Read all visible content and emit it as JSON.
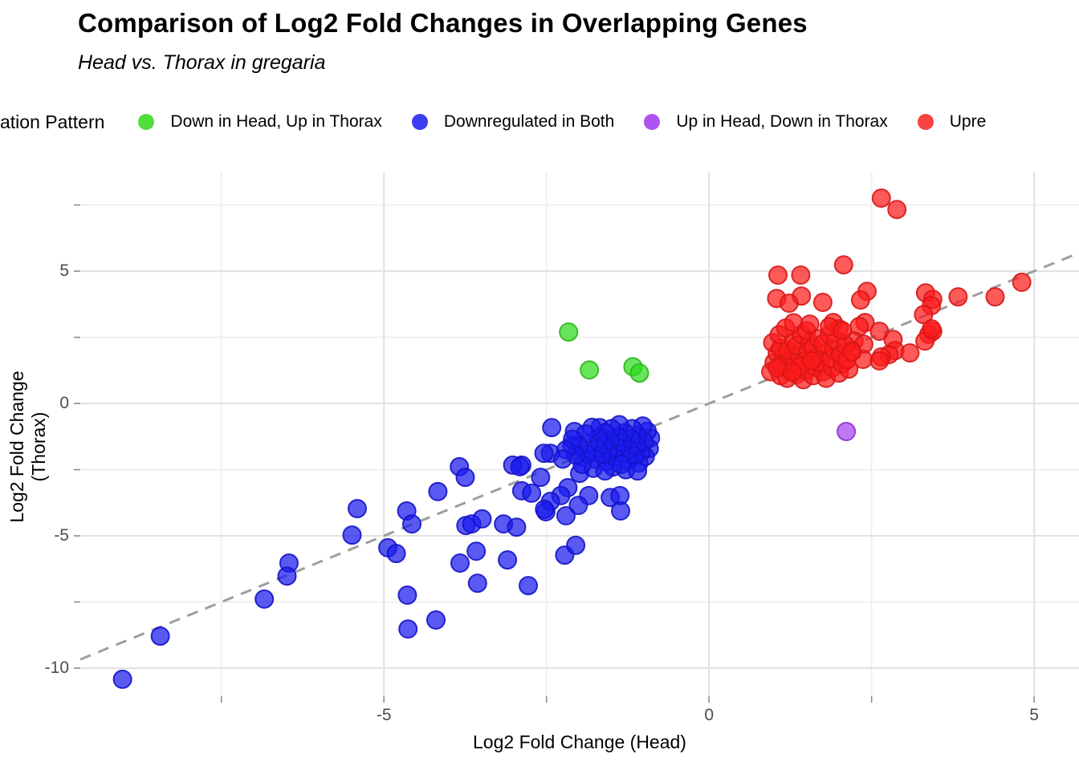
{
  "header": {
    "title": "Comparison of Log2 Fold Changes in Overlapping Genes",
    "subtitle": "Head vs. Thorax in gregaria"
  },
  "legend": {
    "title": "ation Pattern",
    "items": [
      {
        "label": "Down in Head, Up in Thorax",
        "color": "#4FDE3A"
      },
      {
        "label": "Downregulated in Both",
        "color": "#3D3DF0"
      },
      {
        "label": "Up in Head, Down in Thorax",
        "color": "#AE54F0"
      },
      {
        "label": "Upre",
        "color": "#F94343"
      }
    ]
  },
  "chart_data": {
    "type": "scatter",
    "title": "Comparison of Log2 Fold Changes in Overlapping Genes",
    "subtitle": "Head vs. Thorax in gregaria",
    "xlabel": "Log2 Fold Change (Head)",
    "ylabel": "Log2 Fold Change (Thorax)",
    "xlim": [
      -9.67,
      5.69
    ],
    "ylim": [
      -11.06,
      8.73
    ],
    "grid": {
      "x_major": [
        -5,
        0,
        5
      ],
      "x_minor": [
        -7.5,
        -2.5,
        2.5
      ],
      "y_major": [
        -10,
        -5,
        0,
        5
      ],
      "y_minor": [
        -7.5,
        -2.5,
        2.5,
        7.5
      ]
    },
    "x_tick_marks": [
      -7.5,
      -5,
      -2.5,
      0,
      2.5,
      5
    ],
    "y_tick_marks": [
      -10,
      -7.5,
      -5,
      -2.5,
      0,
      2.5,
      5,
      7.5
    ],
    "x_tick_labels": [
      {
        "value": -5,
        "label": "-5"
      },
      {
        "value": 0,
        "label": "0"
      },
      {
        "value": 5,
        "label": "5"
      }
    ],
    "y_tick_labels": [
      {
        "value": -10,
        "label": "-10"
      },
      {
        "value": -5,
        "label": "-5"
      },
      {
        "value": 0,
        "label": "0"
      },
      {
        "value": 5,
        "label": "5"
      }
    ],
    "identity_line": {
      "style": "dashed",
      "color": "#9e9e9e",
      "from": [
        -9.67,
        -9.67
      ],
      "to": [
        5.69,
        5.69
      ]
    },
    "series": [
      {
        "name": "Down in Head, Up in Thorax",
        "color": "#2FD91F",
        "stroke": "#2AB81A",
        "points": [
          [
            -2.16,
            2.7
          ],
          [
            -1.84,
            1.27
          ],
          [
            -1.17,
            1.39
          ],
          [
            -1.07,
            1.15
          ]
        ]
      },
      {
        "name": "Downregulated in Both",
        "color": "#1B1BEF",
        "stroke": "#1414C8",
        "points": [
          [
            -2.42,
            -0.91
          ],
          [
            -2.07,
            -1.06
          ],
          [
            -1.68,
            -0.91
          ],
          [
            -2.44,
            -1.88
          ],
          [
            -2.11,
            -1.58
          ],
          [
            -1.95,
            -2.03
          ],
          [
            -1.99,
            -2.64
          ],
          [
            -2.88,
            -2.33
          ],
          [
            -2.88,
            -3.3
          ],
          [
            -2.73,
            -3.39
          ],
          [
            -2.17,
            -3.18
          ],
          [
            -2.28,
            -3.48
          ],
          [
            -1.85,
            -3.48
          ],
          [
            -2.44,
            -3.7
          ],
          [
            -2.01,
            -3.85
          ],
          [
            -1.52,
            -3.55
          ],
          [
            -1.37,
            -3.48
          ],
          [
            -1.36,
            -4.06
          ],
          [
            -2.2,
            -4.24
          ],
          [
            -2.51,
            -4.09
          ],
          [
            -5.41,
            -3.97
          ],
          [
            -5.49,
            -4.97
          ],
          [
            -4.65,
            -4.06
          ],
          [
            -4.57,
            -4.55
          ],
          [
            -4.94,
            -5.45
          ],
          [
            -4.81,
            -5.67
          ],
          [
            -4.17,
            -3.33
          ],
          [
            -3.84,
            -2.39
          ],
          [
            -3.75,
            -2.79
          ],
          [
            -3.74,
            -4.61
          ],
          [
            -3.65,
            -4.55
          ],
          [
            -3.49,
            -4.36
          ],
          [
            -3.16,
            -4.55
          ],
          [
            -2.96,
            -4.67
          ],
          [
            -3.58,
            -5.58
          ],
          [
            -3.83,
            -6.03
          ],
          [
            -3.1,
            -5.91
          ],
          [
            -3.56,
            -6.79
          ],
          [
            -2.78,
            -6.88
          ],
          [
            -4.64,
            -7.24
          ],
          [
            -3.02,
            -2.33
          ],
          [
            -2.91,
            -2.39
          ],
          [
            -2.54,
            -1.88
          ],
          [
            -2.59,
            -2.79
          ],
          [
            -2.53,
            -4.0
          ],
          [
            -2.22,
            -5.73
          ],
          [
            -2.05,
            -5.36
          ],
          [
            -4.2,
            -8.18
          ],
          [
            -4.63,
            -8.52
          ],
          [
            -6.46,
            -6.03
          ],
          [
            -6.49,
            -6.52
          ],
          [
            -6.84,
            -7.39
          ],
          [
            -8.44,
            -8.79
          ],
          [
            -9.02,
            -10.42
          ],
          [
            -0.9,
            -1.3
          ],
          [
            -0.92,
            -1.7
          ],
          [
            -0.95,
            -1.05
          ],
          [
            -0.98,
            -2.0
          ],
          [
            -1.0,
            -1.45
          ],
          [
            -1.02,
            -0.85
          ],
          [
            -1.05,
            -1.85
          ],
          [
            -1.08,
            -2.25
          ],
          [
            -1.1,
            -1.2
          ],
          [
            -1.12,
            -1.6
          ],
          [
            -1.15,
            -2.0
          ],
          [
            -1.18,
            -0.95
          ],
          [
            -1.2,
            -1.35
          ],
          [
            -1.22,
            -1.75
          ],
          [
            -1.25,
            -2.15
          ],
          [
            -1.28,
            -2.5
          ],
          [
            -1.3,
            -1.1
          ],
          [
            -1.32,
            -1.5
          ],
          [
            -1.35,
            -1.9
          ],
          [
            -1.38,
            -0.8
          ],
          [
            -1.4,
            -1.25
          ],
          [
            -1.42,
            -1.65
          ],
          [
            -1.45,
            -2.05
          ],
          [
            -1.48,
            -2.4
          ],
          [
            -1.5,
            -0.95
          ],
          [
            -1.52,
            -1.4
          ],
          [
            -1.55,
            -1.8
          ],
          [
            -1.58,
            -2.2
          ],
          [
            -1.6,
            -1.1
          ],
          [
            -1.62,
            -1.55
          ],
          [
            -1.65,
            -1.95
          ],
          [
            -1.7,
            -1.3
          ],
          [
            -1.72,
            -1.7
          ],
          [
            -1.75,
            -2.1
          ],
          [
            -1.78,
            -2.45
          ],
          [
            -1.8,
            -0.9
          ],
          [
            -1.85,
            -1.5
          ],
          [
            -1.88,
            -1.9
          ],
          [
            -1.9,
            -1.15
          ],
          [
            -1.95,
            -2.3
          ],
          [
            -2.0,
            -1.6
          ],
          [
            -2.05,
            -1.95
          ],
          [
            -2.1,
            -1.35
          ],
          [
            -2.2,
            -1.75
          ],
          [
            -2.25,
            -2.1
          ],
          [
            -1.35,
            -2.3
          ],
          [
            -1.6,
            -2.55
          ],
          [
            -1.1,
            -2.55
          ]
        ]
      },
      {
        "name": "Up in Head, Down in Thorax",
        "color": "#A743EE",
        "stroke": "#8F2ED6",
        "points": [
          [
            2.11,
            -1.06
          ]
        ]
      },
      {
        "name": "Upre",
        "color": "#FC1B1B",
        "stroke": "#D81616",
        "points": [
          [
            2.65,
            7.76
          ],
          [
            2.89,
            7.33
          ],
          [
            2.07,
            5.24
          ],
          [
            1.06,
            4.85
          ],
          [
            1.41,
            4.85
          ],
          [
            4.81,
            4.58
          ],
          [
            2.43,
            4.24
          ],
          [
            3.33,
            4.18
          ],
          [
            1.42,
            4.06
          ],
          [
            4.4,
            4.03
          ],
          [
            3.83,
            4.03
          ],
          [
            1.04,
            3.97
          ],
          [
            3.44,
            3.94
          ],
          [
            2.33,
            3.91
          ],
          [
            1.75,
            3.82
          ],
          [
            1.23,
            3.79
          ],
          [
            3.42,
            3.7
          ],
          [
            3.3,
            3.36
          ],
          [
            2.4,
            3.06
          ],
          [
            1.91,
            3.06
          ],
          [
            2.31,
            2.91
          ],
          [
            2.62,
            2.73
          ],
          [
            2.0,
            2.82
          ],
          [
            3.38,
            2.61
          ],
          [
            2.83,
            2.42
          ],
          [
            3.44,
            2.73
          ],
          [
            3.32,
            2.36
          ],
          [
            2.23,
            2.36
          ],
          [
            2.38,
            2.24
          ],
          [
            2.86,
            2.0
          ],
          [
            3.09,
            1.91
          ],
          [
            2.77,
            1.85
          ],
          [
            2.65,
            1.76
          ],
          [
            2.37,
            1.67
          ],
          [
            2.19,
            2.0
          ],
          [
            3.42,
            2.82
          ],
          [
            2.62,
            1.61
          ],
          [
            0.95,
            1.2
          ],
          [
            1.0,
            1.55
          ],
          [
            1.05,
            1.9
          ],
          [
            0.98,
            2.3
          ],
          [
            1.1,
            1.05
          ],
          [
            1.12,
            1.45
          ],
          [
            1.15,
            1.8
          ],
          [
            1.1,
            2.1
          ],
          [
            1.08,
            2.6
          ],
          [
            1.2,
            0.95
          ],
          [
            1.22,
            1.3
          ],
          [
            1.25,
            1.65
          ],
          [
            1.22,
            2.0
          ],
          [
            1.3,
            2.35
          ],
          [
            1.18,
            2.85
          ],
          [
            1.35,
            1.1
          ],
          [
            1.32,
            1.5
          ],
          [
            1.38,
            1.85
          ],
          [
            1.35,
            2.2
          ],
          [
            1.42,
            2.6
          ],
          [
            1.3,
            3.05
          ],
          [
            1.45,
            0.9
          ],
          [
            1.5,
            1.25
          ],
          [
            1.48,
            1.6
          ],
          [
            1.52,
            1.95
          ],
          [
            1.55,
            2.3
          ],
          [
            1.5,
            2.75
          ],
          [
            1.6,
            1.05
          ],
          [
            1.62,
            1.4
          ],
          [
            1.65,
            1.75
          ],
          [
            1.6,
            2.1
          ],
          [
            1.68,
            2.45
          ],
          [
            1.55,
            3.0
          ],
          [
            1.75,
            1.2
          ],
          [
            1.72,
            1.55
          ],
          [
            1.78,
            1.9
          ],
          [
            1.75,
            2.25
          ],
          [
            1.85,
            2.6
          ],
          [
            1.8,
            0.95
          ],
          [
            1.9,
            1.35
          ],
          [
            1.88,
            1.7
          ],
          [
            1.92,
            2.05
          ],
          [
            1.95,
            2.4
          ],
          [
            2.0,
            1.15
          ],
          [
            2.05,
            1.5
          ],
          [
            2.02,
            1.85
          ],
          [
            2.1,
            2.2
          ],
          [
            2.15,
            1.3
          ],
          [
            2.12,
            1.65
          ],
          [
            2.2,
            1.95
          ],
          [
            1.4,
            1.4
          ],
          [
            1.58,
            1.62
          ],
          [
            1.05,
            1.35
          ],
          [
            1.28,
            1.18
          ],
          [
            1.85,
            2.9
          ],
          [
            2.05,
            2.75
          ]
        ]
      }
    ]
  },
  "axis": {
    "x_title": "Log2 Fold Change (Head)",
    "y_title": "Log2 Fold Change (Thorax)"
  }
}
